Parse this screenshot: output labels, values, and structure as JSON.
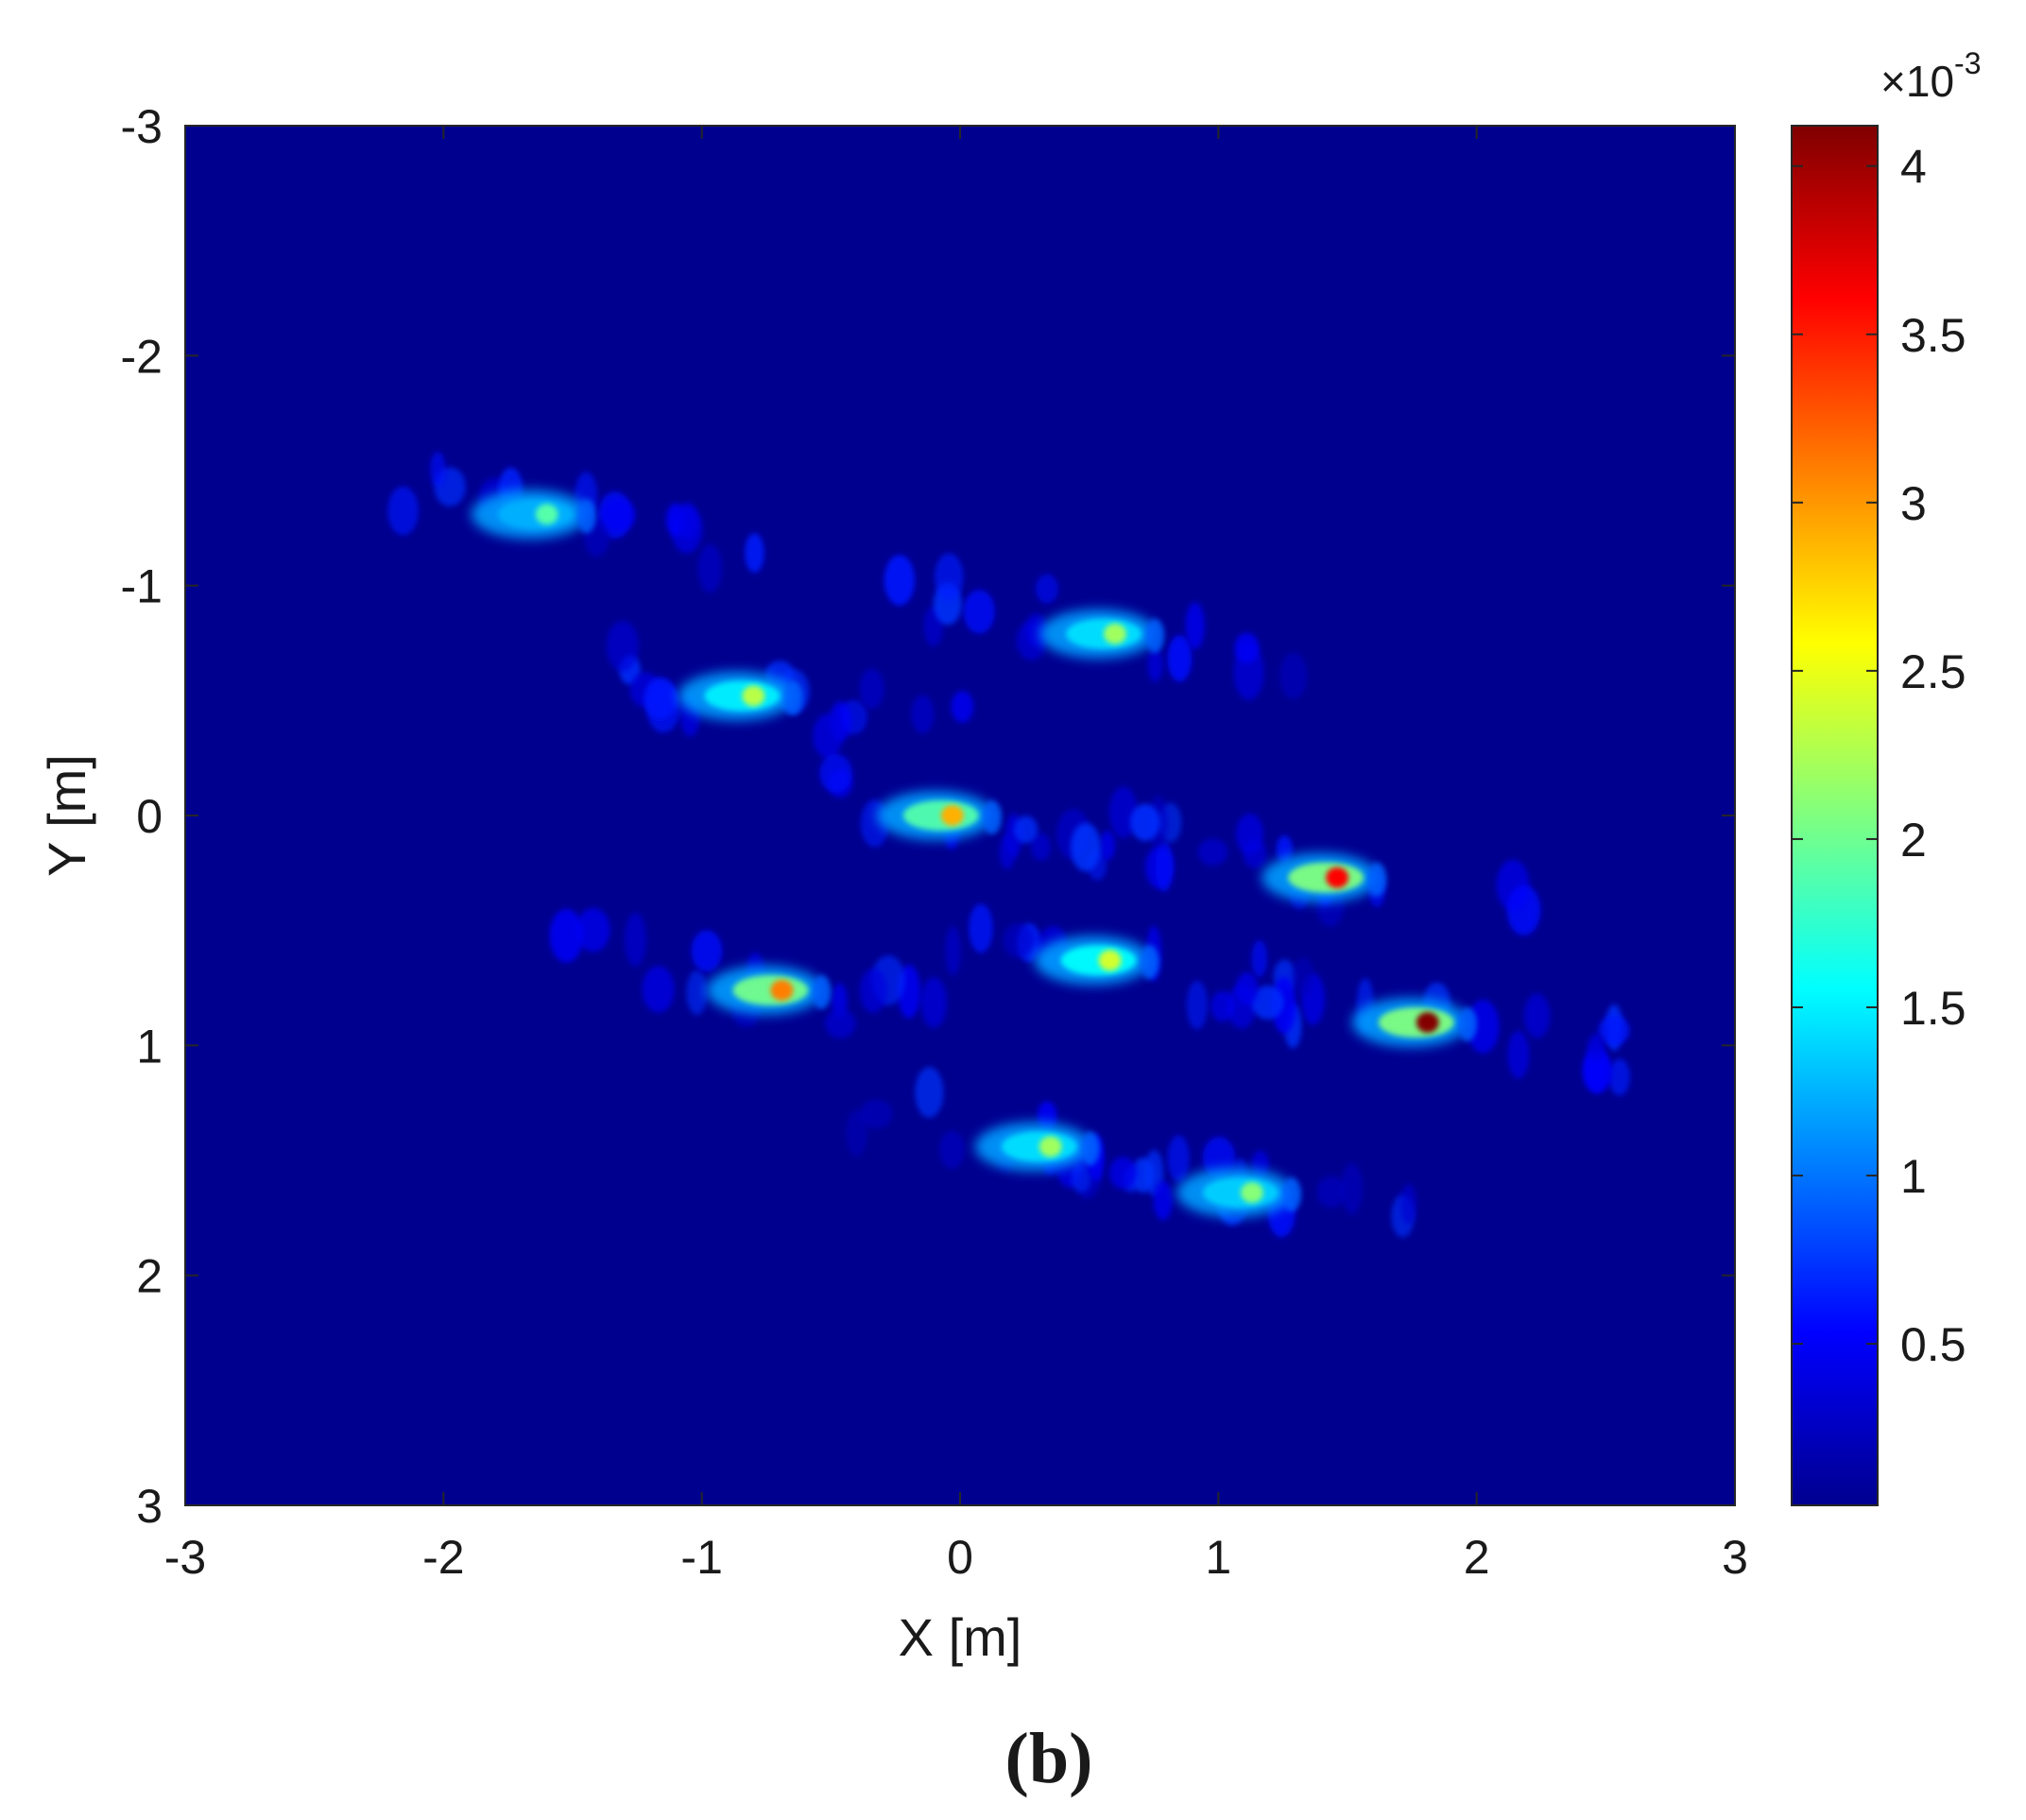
{
  "panel_label": "(b)",
  "chart_data": {
    "type": "heatmap",
    "title": "",
    "xlabel": "X [m]",
    "ylabel": "Y [m]",
    "xlim": [
      -3,
      3
    ],
    "ylim": [
      -3,
      3
    ],
    "y_axis_direction": "reversed (top -3, bottom 3)",
    "x_ticks": [
      -3,
      -2,
      -1,
      0,
      1,
      2,
      3
    ],
    "y_ticks": [
      -3,
      -2,
      -1,
      0,
      1,
      2,
      3
    ],
    "x_tick_labels": [
      "-3",
      "-2",
      "-1",
      "0",
      "1",
      "2",
      "3"
    ],
    "y_tick_labels": [
      "-3",
      "-2",
      "-1",
      "0",
      "1",
      "2",
      "3"
    ],
    "grid": false,
    "colormap": "jet",
    "background_color": "#00008f",
    "colorbar": {
      "placement": "right",
      "range": [
        2e-05,
        0.00412
      ],
      "exponent_label": "×10",
      "exponent": "-3",
      "tick_values": [
        0.5,
        1,
        1.5,
        2,
        2.5,
        3,
        3.5,
        4
      ],
      "tick_labels": [
        "0.5",
        "1",
        "1.5",
        "2",
        "2.5",
        "3",
        "3.5",
        "4"
      ]
    },
    "peaks": [
      {
        "x": -1.6,
        "y": -1.31,
        "value": 0.0019
      },
      {
        "x": 0.6,
        "y": -0.79,
        "value": 0.0022
      },
      {
        "x": -0.8,
        "y": -0.52,
        "value": 0.0023
      },
      {
        "x": -0.03,
        "y": 0.0,
        "value": 0.0029
      },
      {
        "x": 1.46,
        "y": 0.27,
        "value": 0.0036
      },
      {
        "x": 0.58,
        "y": 0.63,
        "value": 0.0024
      },
      {
        "x": -0.69,
        "y": 0.76,
        "value": 0.0031
      },
      {
        "x": 1.81,
        "y": 0.9,
        "value": 0.0041
      },
      {
        "x": 0.35,
        "y": 1.44,
        "value": 0.0022
      },
      {
        "x": 1.13,
        "y": 1.64,
        "value": 0.0021
      }
    ]
  }
}
